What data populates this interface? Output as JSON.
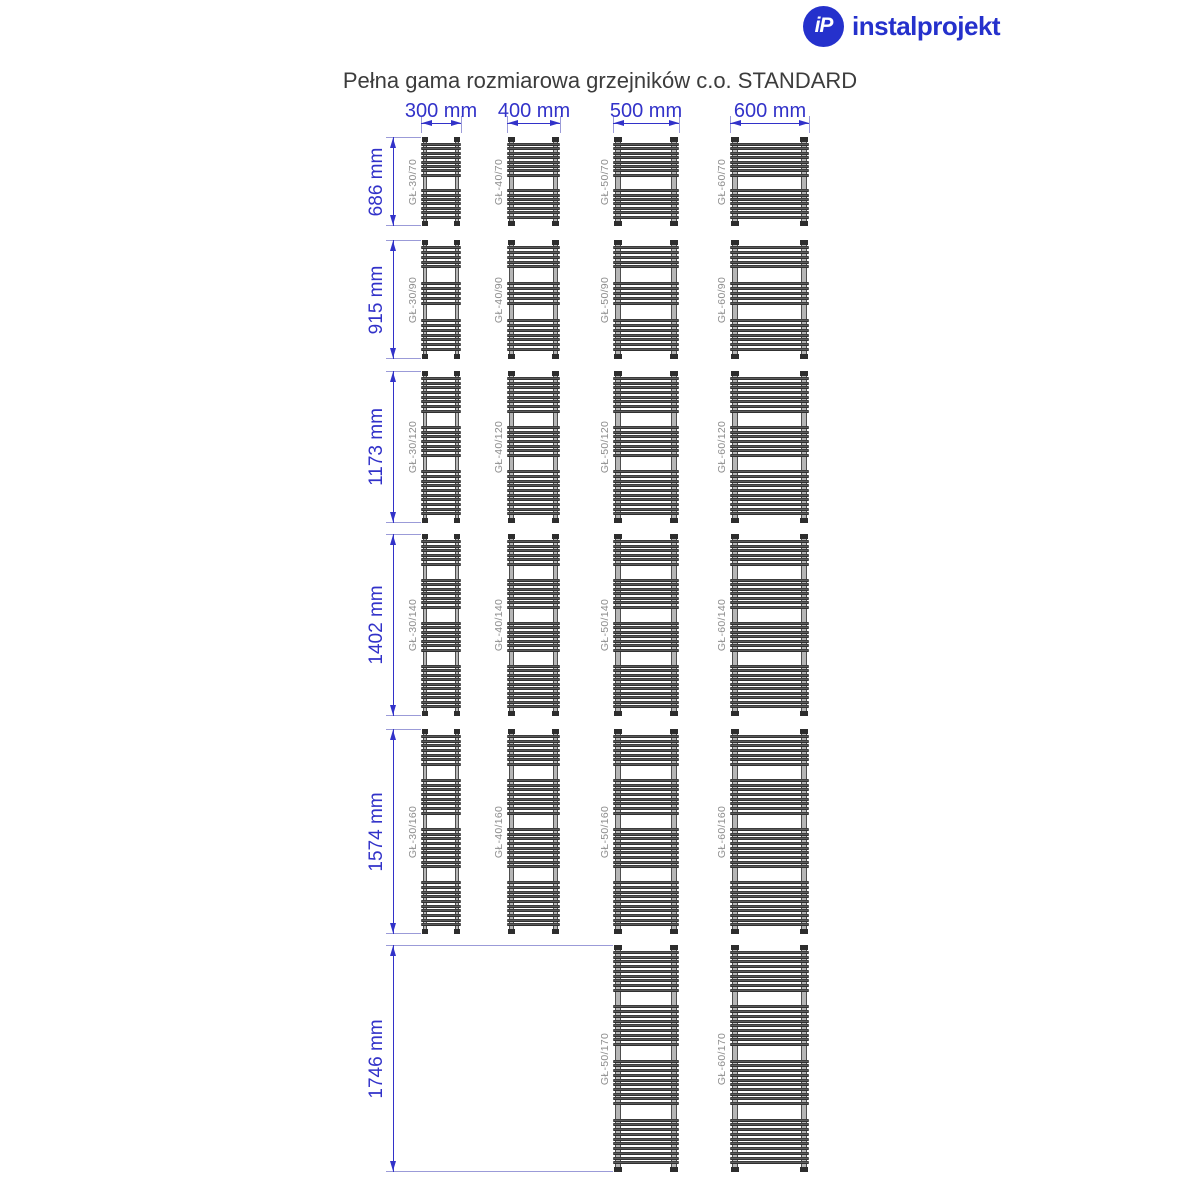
{
  "brand": {
    "name": "instalprojekt",
    "monogram": "iP"
  },
  "title": "Pełna gama rozmiarowa grzejników c.o. STANDARD",
  "columns": [
    {
      "label": "300 mm",
      "width_mm": 300
    },
    {
      "label": "400 mm",
      "width_mm": 400
    },
    {
      "label": "500 mm",
      "width_mm": 500
    },
    {
      "label": "600 mm",
      "width_mm": 600
    }
  ],
  "rows": [
    {
      "label": "686 mm",
      "height_mm": 686,
      "tube_groups": [
        8,
        7
      ],
      "models": [
        "GŁ-30/70",
        "GŁ-40/70",
        "GŁ-50/70",
        "GŁ-60/70"
      ]
    },
    {
      "label": "915 mm",
      "height_mm": 915,
      "tube_groups": [
        5,
        5,
        7
      ],
      "models": [
        "GŁ-30/90",
        "GŁ-40/90",
        "GŁ-50/90",
        "GŁ-60/90"
      ]
    },
    {
      "label": "1173 mm",
      "height_mm": 1173,
      "tube_groups": [
        8,
        7,
        10
      ],
      "models": [
        "GŁ-30/120",
        "GŁ-40/120",
        "GŁ-50/120",
        "GŁ-60/120"
      ]
    },
    {
      "label": "1402 mm",
      "height_mm": 1402,
      "tube_groups": [
        6,
        7,
        7,
        10
      ],
      "models": [
        "GŁ-30/140",
        "GŁ-40/140",
        "GŁ-50/140",
        "GŁ-60/140"
      ]
    },
    {
      "label": "1574 mm",
      "height_mm": 1574,
      "tube_groups": [
        7,
        8,
        9,
        10
      ],
      "models": [
        "GŁ-30/160",
        "GŁ-40/160",
        "GŁ-50/160",
        "GŁ-60/160"
      ]
    },
    {
      "label": "1746 mm",
      "height_mm": 1746,
      "tube_groups": [
        9,
        9,
        10,
        10
      ],
      "models": [
        null,
        null,
        "GŁ-50/170",
        "GŁ-60/170"
      ]
    }
  ],
  "colors": {
    "dimension_blue": "#3232c9",
    "extension_blue": "#9b9bd8",
    "logo_blue": "#2531cc",
    "title_gray": "#3c3c3c",
    "model_label_gray": "#8d8d8d",
    "tube_dark": "#3d3d3d",
    "rail_gray": "#b6b6b6",
    "cap_dark": "#2d2d2d"
  }
}
